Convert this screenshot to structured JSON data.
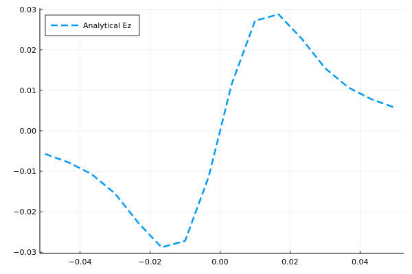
{
  "chart_data": {
    "type": "line",
    "title": "",
    "xlabel": "",
    "ylabel": "",
    "xlim": [
      -0.0515,
      0.0525
    ],
    "ylim": [
      -0.0303,
      0.0303
    ],
    "x_ticks": [
      -0.04,
      -0.02,
      0.0,
      0.02,
      0.04
    ],
    "x_tick_labels": [
      "−0.04",
      "−0.02",
      "0.00",
      "0.02",
      "0.04"
    ],
    "y_ticks": [
      -0.03,
      -0.02,
      -0.01,
      0.0,
      0.01,
      0.02,
      0.03
    ],
    "y_tick_labels": [
      "−0.03",
      "−0.02",
      "−0.01",
      "0.00",
      "0.01",
      "0.02",
      "0.03"
    ],
    "grid": true,
    "legend_position": "top-left",
    "series": [
      {
        "name": "Analytical Ez",
        "color": "#009af9",
        "style": "dashed",
        "x": [
          -0.05,
          -0.0433,
          -0.0367,
          -0.03,
          -0.0233,
          -0.0167,
          -0.01,
          -0.0033,
          0.0,
          0.0033,
          0.01,
          0.0167,
          0.0233,
          0.03,
          0.0367,
          0.0433,
          0.05
        ],
        "y": [
          -0.0057,
          -0.0078,
          -0.0107,
          -0.0155,
          -0.0228,
          -0.0288,
          -0.0272,
          -0.0115,
          0.0,
          0.0115,
          0.0272,
          0.0288,
          0.0228,
          0.0155,
          0.0107,
          0.0078,
          0.0057
        ]
      }
    ]
  }
}
